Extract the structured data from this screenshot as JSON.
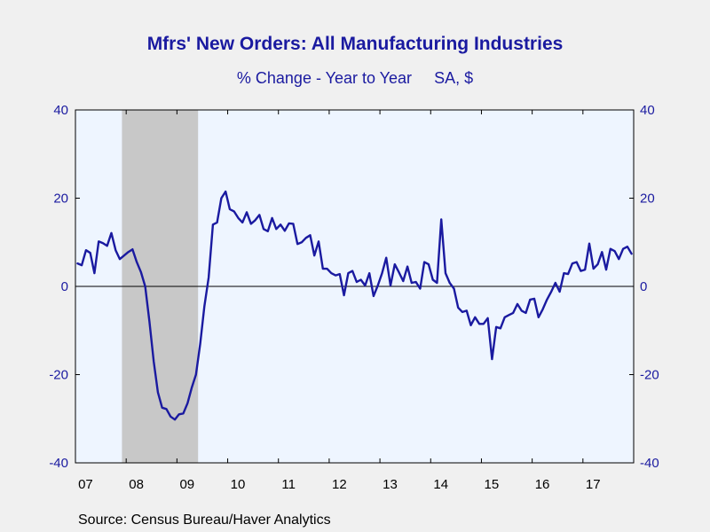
{
  "title": "Mfrs' New Orders: All Manufacturing Industries",
  "subtitle_left": "% Change - Year to Year",
  "subtitle_right": "SA, $",
  "source": "Source:  Census Bureau/Haver Analytics",
  "colors": {
    "line": "#1a1aa0",
    "recession": "#c8c8c8",
    "plot_bg": "#eef5ff",
    "text": "#1a1aa0"
  },
  "chart_data": {
    "type": "line",
    "title": "Mfrs' New Orders: All Manufacturing Industries",
    "subtitle": "% Change - Year to Year    SA, $",
    "x_tick_labels": [
      "07",
      "08",
      "09",
      "10",
      "11",
      "12",
      "13",
      "14",
      "15",
      "16",
      "17"
    ],
    "ylim": [
      -40,
      40
    ],
    "y_ticks": [
      -40,
      -20,
      0,
      20,
      40
    ],
    "y_tick_labels": [
      "-40",
      "-20",
      "0",
      "20",
      "40"
    ],
    "right_axis_mirror": true,
    "zero_line": true,
    "recession_shading": {
      "start": "2007-12",
      "end": "2009-06"
    },
    "series": [
      {
        "start": "2007-01",
        "frequency": "monthly",
        "values": [
          5.2,
          4.8,
          8.2,
          7.6,
          3.0,
          10.2,
          9.8,
          9.2,
          12.1,
          8.2,
          6.2,
          7.0,
          7.8,
          8.4,
          5.5,
          3.2,
          0.0,
          -8.0,
          -17.0,
          -24.0,
          -27.5,
          -27.8,
          -29.5,
          -30.2,
          -29.0,
          -28.8,
          -26.5,
          -23.0,
          -20.0,
          -13.0,
          -4.5,
          2.0,
          14.0,
          14.5,
          20.0,
          21.5,
          17.5,
          17.0,
          15.5,
          14.5,
          16.8,
          14.2,
          15.0,
          16.2,
          13.0,
          12.5,
          15.5,
          13.0,
          14.0,
          12.6,
          14.3,
          14.2,
          9.6,
          10.0,
          11.0,
          11.6,
          7.0,
          10.2,
          4.0,
          4.0,
          3.0,
          2.5,
          2.8,
          -2.0,
          3.0,
          3.5,
          1.0,
          1.5,
          0.2,
          3.0,
          -2.2,
          0.2,
          3.0,
          6.5,
          0.2,
          5.0,
          3.2,
          1.2,
          4.5,
          0.8,
          1.0,
          -0.5,
          5.5,
          5.0,
          1.5,
          0.8,
          15.2,
          3.0,
          0.8,
          -0.5,
          -4.8,
          -5.8,
          -5.5,
          -8.8,
          -7.0,
          -8.5,
          -8.5,
          -7.2,
          -16.5,
          -9.2,
          -9.5,
          -7.0,
          -6.5,
          -6.0,
          -4.0,
          -5.5,
          -6.0,
          -3.0,
          -2.8,
          -7.0,
          -5.2,
          -3.0,
          -1.2,
          0.8,
          -1.2,
          3.0,
          2.8,
          5.2,
          5.5,
          3.5,
          3.8,
          9.7,
          4.0,
          5.0,
          7.8,
          3.8,
          8.5,
          8.0,
          6.2,
          8.5,
          9.0,
          7.4
        ]
      }
    ]
  }
}
